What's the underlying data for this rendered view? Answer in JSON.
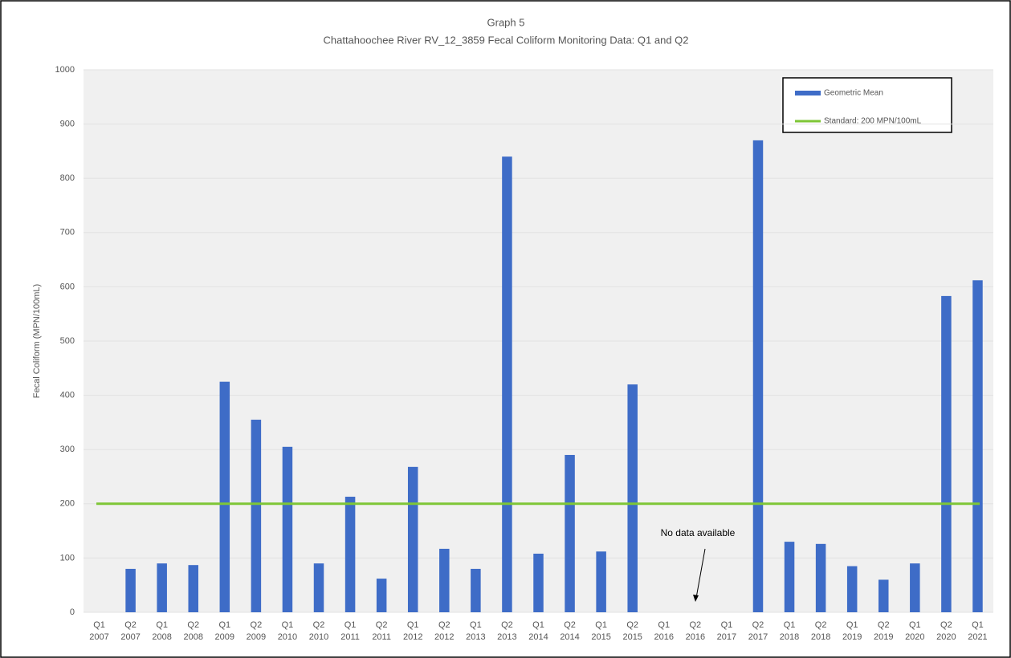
{
  "chart_data": {
    "type": "bar",
    "title": "Graph 5",
    "subtitle": "Chattahoochee River RV_12_3859 Fecal Coliform Monitoring Data: Q1 and Q2",
    "y_label": "Fecal Coliform (MPN/100mL)",
    "categories": [
      "Q1 2007",
      "Q2 2007",
      "Q1 2008",
      "Q2 2008",
      "Q1 2009",
      "Q2 2009",
      "Q1 2010",
      "Q2 2010",
      "Q1 2011",
      "Q2 2011",
      "Q1 2012",
      "Q2 2012",
      "Q1 2013",
      "Q2 2013",
      "Q1 2014",
      "Q2 2014",
      "Q1 2015",
      "Q2 2015",
      "Q1 2016",
      "Q2 2016",
      "Q1 2017",
      "Q2 2017",
      "Q1 2018",
      "Q2 2018",
      "Q1 2019",
      "Q2 2019",
      "Q1 2020",
      "Q2 2020",
      "Q1 2021"
    ],
    "series": [
      {
        "name": "Geometric Mean",
        "color": "#3e6cc7",
        "values": [
          null,
          80,
          90,
          87,
          425,
          355,
          305,
          90,
          213,
          62,
          268,
          117,
          80,
          840,
          108,
          290,
          112,
          420,
          null,
          null,
          null,
          870,
          130,
          126,
          85,
          60,
          90,
          583,
          612
        ]
      }
    ],
    "standard": {
      "name": "Standard: 200 MPN/100mL",
      "value": 200,
      "color": "#7ec636"
    },
    "annotation": "No data available",
    "ylim": [
      0,
      1000
    ],
    "yticks": [
      0,
      100,
      200,
      300,
      400,
      500,
      600,
      700,
      800,
      900,
      1000
    ],
    "grid": true
  }
}
